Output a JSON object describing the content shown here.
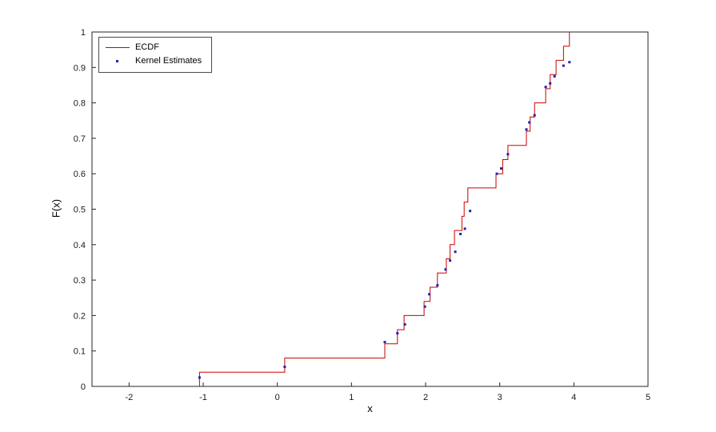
{
  "figure": {
    "background": "#ffffff",
    "axis_color": "#262626",
    "text_color": "#000000"
  },
  "chart_data": {
    "type": "line",
    "title": "",
    "xlabel": "x",
    "ylabel": "F(x)",
    "xlim": [
      -2.5,
      5
    ],
    "ylim": [
      0,
      1
    ],
    "xticks": [
      -2,
      -1,
      0,
      1,
      2,
      3,
      4,
      5
    ],
    "yticks": [
      0,
      0.1,
      0.2,
      0.3,
      0.4,
      0.5,
      0.6,
      0.7,
      0.8,
      0.9,
      1
    ],
    "grid": false,
    "legend_position": "top-left",
    "legend": [
      {
        "label": "ECDF",
        "marker": "line",
        "color": "#cc0000"
      },
      {
        "label": "Kernel Estimates",
        "marker": "dot",
        "color": "#2222aa"
      }
    ],
    "series": [
      {
        "name": "ECDF",
        "type": "step",
        "color": "#cc0000",
        "x": [
          -1.05,
          0.1,
          1.45,
          1.62,
          1.71,
          1.98,
          2.06,
          2.16,
          2.28,
          2.33,
          2.39,
          2.49,
          2.52,
          2.57,
          2.95,
          3.04,
          3.11,
          3.36,
          3.41,
          3.47,
          3.62,
          3.68,
          3.76,
          3.86,
          3.94
        ],
        "y": [
          0.04,
          0.08,
          0.12,
          0.16,
          0.2,
          0.24,
          0.28,
          0.32,
          0.36,
          0.4,
          0.44,
          0.48,
          0.52,
          0.56,
          0.6,
          0.64,
          0.68,
          0.72,
          0.76,
          0.8,
          0.84,
          0.88,
          0.92,
          0.96,
          1.0
        ]
      },
      {
        "name": "Kernel Estimates",
        "type": "scatter",
        "color": "#2222aa",
        "points": [
          [
            -1.05,
            0.025
          ],
          [
            0.1,
            0.055
          ],
          [
            1.45,
            0.125
          ],
          [
            1.62,
            0.15
          ],
          [
            1.72,
            0.175
          ],
          [
            1.99,
            0.225
          ],
          [
            2.05,
            0.26
          ],
          [
            2.16,
            0.285
          ],
          [
            2.27,
            0.33
          ],
          [
            2.33,
            0.355
          ],
          [
            2.4,
            0.38
          ],
          [
            2.47,
            0.43
          ],
          [
            2.53,
            0.445
          ],
          [
            2.6,
            0.495
          ],
          [
            2.96,
            0.6
          ],
          [
            3.02,
            0.615
          ],
          [
            3.11,
            0.655
          ],
          [
            3.36,
            0.725
          ],
          [
            3.4,
            0.745
          ],
          [
            3.47,
            0.765
          ],
          [
            3.62,
            0.845
          ],
          [
            3.68,
            0.855
          ],
          [
            3.74,
            0.875
          ],
          [
            3.86,
            0.905
          ],
          [
            3.94,
            0.915
          ]
        ]
      }
    ]
  }
}
